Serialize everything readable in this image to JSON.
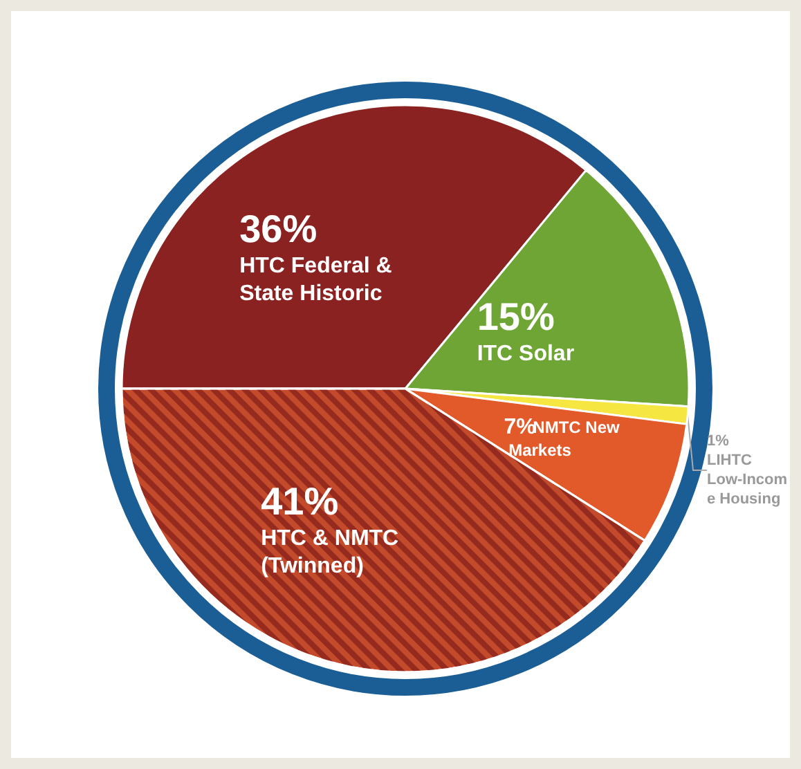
{
  "chart_data": {
    "type": "pie",
    "categories": [
      "HTC Federal & State Historic",
      "ITC Solar",
      "LIHTC Low-Income Housing",
      "NMTC New Markets",
      "HTC & NMTC (Twinned)"
    ],
    "values": [
      36,
      15,
      1,
      7,
      41
    ],
    "value_labels": [
      "36%",
      "15%",
      "1%",
      "7%",
      "41%"
    ],
    "colors": [
      "#8b2222",
      "#6fa534",
      "#f5e642",
      "#e2592a",
      "#c44a2c"
    ],
    "legend": false
  }
}
